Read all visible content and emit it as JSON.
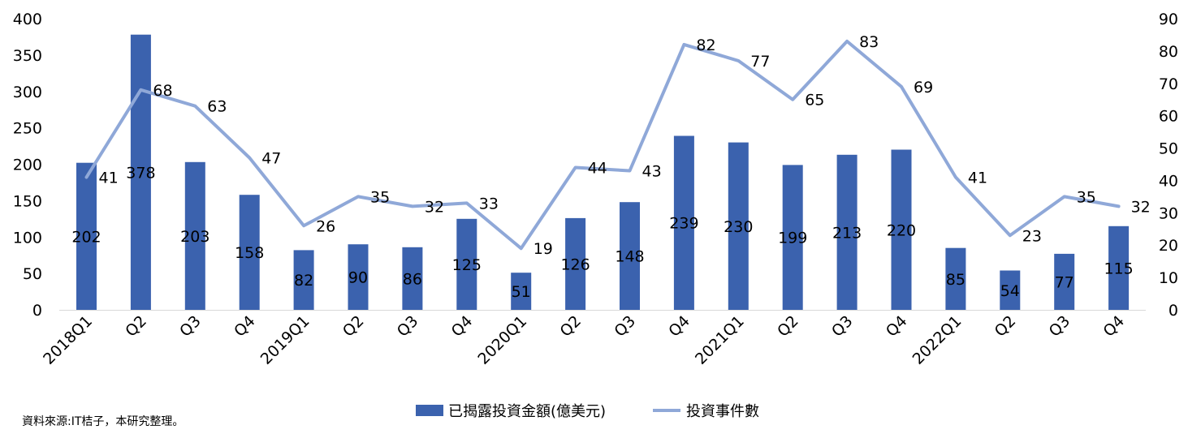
{
  "source_note": "資料來源:IT桔子，本研究整理。",
  "chart_data": {
    "type": "bar",
    "categories": [
      "2018Q1",
      "Q2",
      "Q3",
      "Q4",
      "2019Q1",
      "Q2",
      "Q3",
      "Q4",
      "2020Q1",
      "Q2",
      "Q3",
      "Q4",
      "2021Q1",
      "Q2",
      "Q3",
      "Q4",
      "2022Q1",
      "Q2",
      "Q3",
      "Q4"
    ],
    "series": [
      {
        "name": "已揭露投資金額(億美元)",
        "type": "bar",
        "axis": "left",
        "color": "#3b62ae",
        "values": [
          202,
          378,
          203,
          158,
          82,
          90,
          86,
          125,
          51,
          126,
          148,
          239,
          230,
          199,
          213,
          220,
          85,
          54,
          77,
          115
        ]
      },
      {
        "name": "投資事件數",
        "type": "line",
        "axis": "right",
        "color": "#8fa8d8",
        "values": [
          41,
          68,
          63,
          47,
          26,
          35,
          32,
          33,
          19,
          44,
          43,
          82,
          77,
          65,
          83,
          69,
          41,
          23,
          35,
          32
        ]
      }
    ],
    "ylim_left": [
      0,
      400
    ],
    "yticks_left": [
      0,
      50,
      100,
      150,
      200,
      250,
      300,
      350,
      400
    ],
    "ylim_right": [
      0,
      90
    ],
    "yticks_right": [
      0,
      10,
      20,
      30,
      40,
      50,
      60,
      70,
      80,
      90
    ],
    "title": "",
    "xlabel": "",
    "ylabel": "",
    "grid": false,
    "legend_position": "bottom-center"
  }
}
